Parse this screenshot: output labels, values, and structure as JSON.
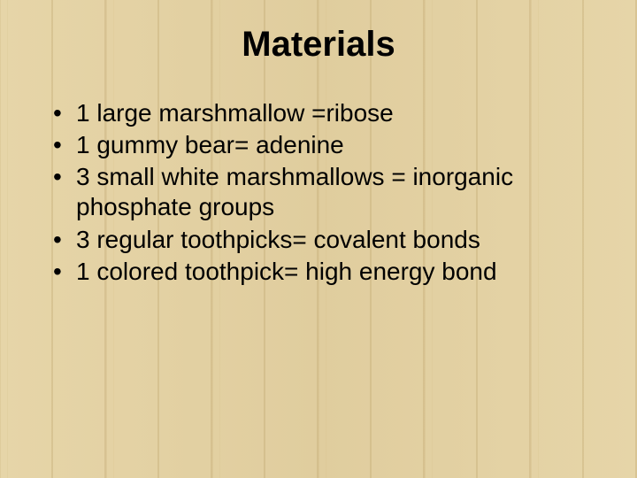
{
  "slide": {
    "title": "Materials",
    "bullets": [
      "1 large marshmallow =ribose",
      "1 gummy bear= adenine",
      "3 small white marshmallows = inorganic phosphate groups",
      "3 regular toothpicks= covalent bonds",
      "1 colored toothpick= high energy bond"
    ],
    "style": {
      "background_base": "#e6d5a8",
      "text_color": "#000000",
      "title_fontsize": 40,
      "bullet_fontsize": 28,
      "font_family": "Arial"
    }
  }
}
